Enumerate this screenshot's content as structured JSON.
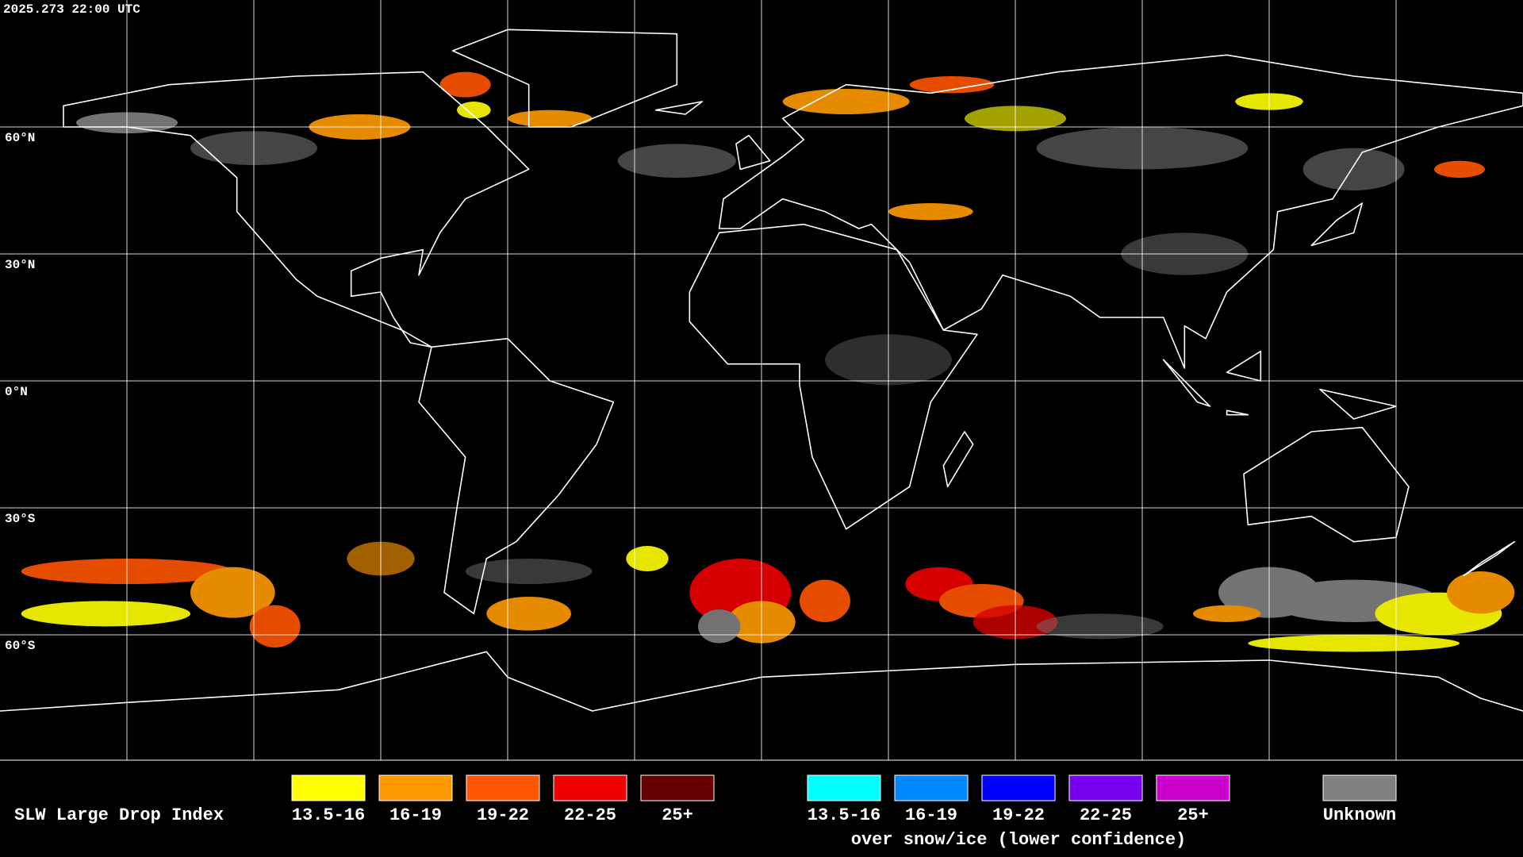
{
  "timestamp": "2025.273 22:00 UTC",
  "latitude_labels": [
    "60°N",
    "30°N",
    "0°N",
    "30°S",
    "60°S"
  ],
  "legend": {
    "title": "SLW Large Drop Index",
    "groups": [
      {
        "items": [
          {
            "label": "13.5-16",
            "color": "#ffff00"
          },
          {
            "label": "16-19",
            "color": "#ff9900"
          },
          {
            "label": "19-22",
            "color": "#ff5500"
          },
          {
            "label": "22-25",
            "color": "#ee0000"
          },
          {
            "label": "25+",
            "color": "#660000"
          }
        ]
      },
      {
        "items": [
          {
            "label": "13.5-16",
            "color": "#00ffff"
          },
          {
            "label": "16-19",
            "color": "#0088ff"
          },
          {
            "label": "19-22",
            "color": "#0000ff"
          },
          {
            "label": "22-25",
            "color": "#7700ee"
          },
          {
            "label": "25+",
            "color": "#cc00cc"
          }
        ],
        "caption": "over snow/ice (lower confidence)"
      },
      {
        "items": [
          {
            "label": "Unknown",
            "color": "#808080"
          }
        ]
      }
    ]
  }
}
